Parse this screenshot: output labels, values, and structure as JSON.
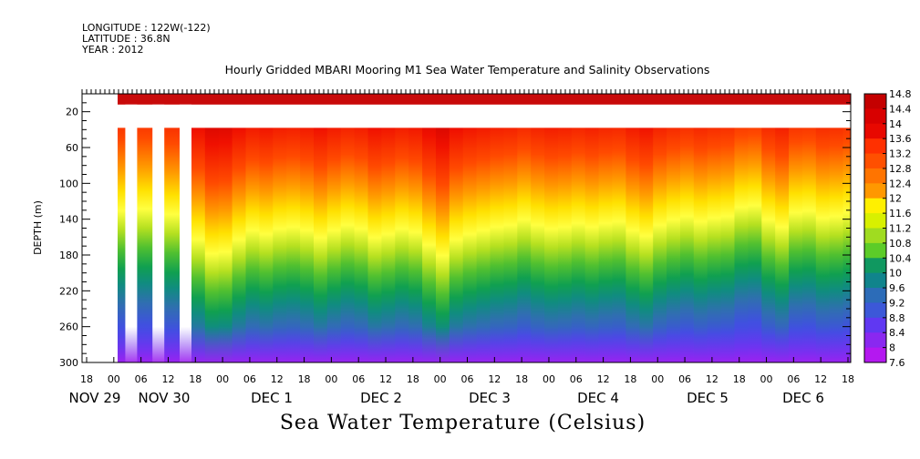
{
  "header": {
    "longitude": "LONGITUDE : 122W(-122)",
    "latitude": "LATITUDE : 36.8N",
    "year": "YEAR : 2012"
  },
  "chart_data": {
    "type": "heatmap",
    "title": "Hourly Gridded MBARI Mooring M1 Sea Water Temperature and Salinity Observations",
    "xlabel": "Sea Water Temperature (Celsius)",
    "ylabel": "DEPTH (m)",
    "ylim": [
      300,
      0
    ],
    "y_ticks": [
      20,
      60,
      100,
      140,
      180,
      220,
      260,
      300
    ],
    "x_tick_hours": [
      "18",
      "00",
      "06",
      "12",
      "18",
      "00",
      "06",
      "12",
      "18",
      "00",
      "06",
      "12",
      "18",
      "00",
      "06",
      "12",
      "18",
      "00",
      "06",
      "12",
      "18",
      "00",
      "06",
      "12",
      "18",
      "00",
      "06",
      "12",
      "18"
    ],
    "x_day_labels": [
      "NOV 29",
      "NOV 30",
      "DEC  1",
      "DEC  2",
      "DEC  3",
      "DEC  4",
      "DEC  5",
      "DEC  6"
    ],
    "colorbar": {
      "labels": [
        "14.8",
        "14.4",
        "14",
        "13.6",
        "13.2",
        "12.8",
        "12.4",
        "12",
        "11.6",
        "11.2",
        "10.8",
        "10.4",
        "10",
        "9.6",
        "9.2",
        "8.8",
        "8.4",
        "8",
        "7.6"
      ],
      "range": [
        7.6,
        14.8
      ]
    },
    "time_range_hours": [
      0,
      162
    ],
    "missing_depth_band_m": [
      12,
      38
    ],
    "surface_temperature_c": 14.6,
    "thermocline_depth_m": [
      [
        0,
        100
      ],
      [
        6,
        98
      ],
      [
        12,
        104
      ],
      [
        18,
        132
      ],
      [
        21,
        148
      ],
      [
        24,
        146
      ],
      [
        27,
        132
      ],
      [
        30,
        122
      ],
      [
        33,
        126
      ],
      [
        36,
        120
      ],
      [
        39,
        118
      ],
      [
        42,
        122
      ],
      [
        45,
        130
      ],
      [
        48,
        122
      ],
      [
        51,
        116
      ],
      [
        54,
        120
      ],
      [
        57,
        130
      ],
      [
        60,
        126
      ],
      [
        63,
        120
      ],
      [
        66,
        124
      ],
      [
        69,
        138
      ],
      [
        72,
        150
      ],
      [
        75,
        132
      ],
      [
        78,
        126
      ],
      [
        81,
        122
      ],
      [
        84,
        118
      ],
      [
        87,
        116
      ],
      [
        90,
        110
      ],
      [
        93,
        116
      ],
      [
        96,
        120
      ],
      [
        99,
        118
      ],
      [
        102,
        114
      ],
      [
        105,
        118
      ],
      [
        108,
        114
      ],
      [
        111,
        112
      ],
      [
        114,
        122
      ],
      [
        117,
        128
      ],
      [
        120,
        116
      ],
      [
        123,
        110
      ],
      [
        126,
        106
      ],
      [
        129,
        112
      ],
      [
        132,
        108
      ],
      [
        135,
        106
      ],
      [
        138,
        96
      ],
      [
        141,
        94
      ],
      [
        144,
        110
      ],
      [
        147,
        118
      ],
      [
        150,
        102
      ],
      [
        153,
        100
      ],
      [
        156,
        108
      ],
      [
        159,
        106
      ],
      [
        162,
        102
      ]
    ]
  }
}
